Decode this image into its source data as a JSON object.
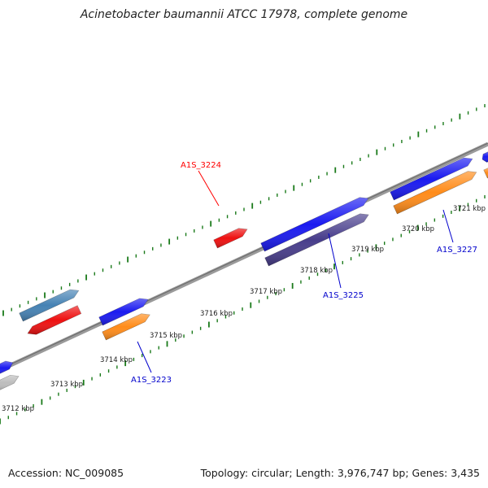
{
  "title": "Acinetobacter baumannii ATCC 17978, complete genome",
  "footer": {
    "accession": "Accession: NC_009085",
    "summary": "Topology: circular; Length: 3,976,747 bp; Genes: 3,435"
  },
  "kbp_labels": [
    "3712 kbp",
    "3713 kbp",
    "3714 kbp",
    "3715 kbp",
    "3716 kbp",
    "3717 kbp",
    "3718 kbp",
    "3719 kbp",
    "3720 kbp",
    "3721 kbp"
  ],
  "gene_labels": [
    {
      "text": "A1S_3224",
      "color": "#ff0000"
    },
    {
      "text": "A1S_3223",
      "color": "#0000cc"
    },
    {
      "text": "A1S_3225",
      "color": "#0000cc"
    },
    {
      "text": "A1S_3227",
      "color": "#0000cc"
    }
  ],
  "colors": {
    "backbone": "#888888",
    "ticks": "#1a7a1a",
    "blue": "#1a1af0",
    "red": "#ee1111",
    "orange": "#ff8c1a",
    "steelblue": "#4682b4",
    "slateblue": "#483d8b",
    "gray": "#bdbdbd"
  }
}
